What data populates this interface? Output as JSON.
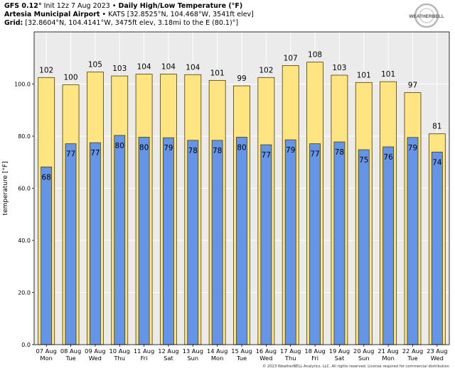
{
  "header": {
    "model": "GFS 0.12°",
    "init": "Init 12z 7 Aug 2023",
    "sep": "•",
    "product": "Daily High/Low Temperature (°F)",
    "station_name": "Artesia Municipal Airport",
    "station_info": "KATS [32.8525°N, 104.468°W, 3541ft elev]",
    "grid_label": "Grid:",
    "grid_info": "[32.8604°N, 104.4141°W, 3475ft elev, 3.18mi to the E (80.1)°]"
  },
  "logo": {
    "text": "WEATHERBELL",
    "icon": "weatherbell-swirl-logo"
  },
  "copyright": "© 2023 WeatherBELL Analytics, LLC. All rights reserved. License required for commercial distribution",
  "colors": {
    "high_fill": "#ffe482",
    "low_fill": "#6495e9",
    "bar_edge": "#4d3d00",
    "plot_bg": "#ebebeb",
    "grid": "#ffffff"
  },
  "chart_data": {
    "type": "bar",
    "ylabel": "temperature [°F]",
    "ylim": [
      0,
      120
    ],
    "yticks": [
      "0.0",
      "20.0",
      "40.0",
      "60.0",
      "80.0",
      "100.0"
    ],
    "grid": true,
    "categories": [
      "07 Aug",
      "08 Aug",
      "09 Aug",
      "10 Aug",
      "11 Aug",
      "12 Aug",
      "13 Aug",
      "14 Aug",
      "15 Aug",
      "16 Aug",
      "17 Aug",
      "18 Aug",
      "19 Aug",
      "20 Aug",
      "21 Aug",
      "22 Aug",
      "23 Aug"
    ],
    "weekdays": [
      "Mon",
      "Tue",
      "Wed",
      "Thu",
      "Fri",
      "Sat",
      "Sun",
      "Mon",
      "Tue",
      "Wed",
      "Thu",
      "Fri",
      "Sat",
      "Sun",
      "Mon",
      "Tue",
      "Wed"
    ],
    "series": [
      {
        "key": "high",
        "values": [
          102.5,
          99.7,
          104.6,
          103.1,
          103.8,
          103.8,
          103.6,
          101.4,
          99.3,
          102.5,
          107.1,
          108.4,
          103.4,
          100.6,
          100.9,
          96.7,
          80.9
        ],
        "labels": [
          "102",
          "100",
          "105",
          "103",
          "104",
          "104",
          "104",
          "101",
          "99",
          "102",
          "107",
          "108",
          "103",
          "101",
          "101",
          "97",
          "81"
        ]
      },
      {
        "key": "low",
        "values": [
          68.2,
          77.1,
          77.5,
          80.3,
          79.6,
          79.4,
          78.4,
          78.4,
          79.6,
          76.7,
          78.6,
          77.1,
          77.8,
          74.8,
          75.9,
          79.5,
          73.9
        ],
        "labels": [
          "68",
          "77",
          "77",
          "80",
          "80",
          "79",
          "78",
          "78",
          "80",
          "77",
          "79",
          "77",
          "78",
          "75",
          "76",
          "79",
          "74"
        ]
      }
    ]
  }
}
